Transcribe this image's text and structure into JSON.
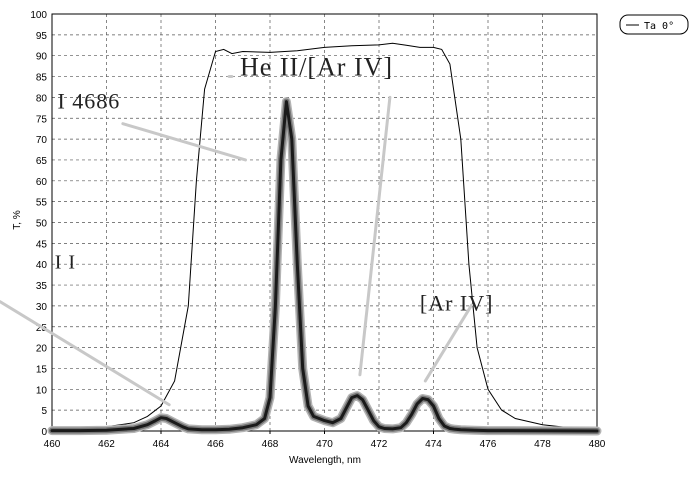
{
  "chart_data": {
    "type": "line",
    "xlabel": "Wavelength, nm",
    "ylabel": "T, %",
    "xlim": [
      460,
      480
    ],
    "ylim": [
      0,
      100
    ],
    "x_ticks": [
      460,
      462,
      464,
      466,
      468,
      470,
      472,
      474,
      476,
      478,
      480
    ],
    "y_ticks": [
      0,
      5,
      10,
      15,
      20,
      25,
      30,
      35,
      40,
      45,
      50,
      55,
      60,
      65,
      70,
      75,
      80,
      85,
      90,
      95,
      100
    ],
    "grid": true,
    "legend_position": "top-right",
    "series": [
      {
        "name": "Ta 0°",
        "color": "#000000",
        "x": [
          460,
          461,
          462,
          463,
          463.5,
          464,
          464.5,
          465,
          465.3,
          465.6,
          466,
          466.3,
          466.6,
          467,
          468,
          469,
          470,
          471,
          472,
          472.5,
          473,
          473.5,
          474,
          474.3,
          474.6,
          475,
          475.3,
          475.6,
          476,
          476.5,
          477,
          478,
          479,
          480
        ],
        "y": [
          0.3,
          0.5,
          1,
          2,
          3.5,
          6,
          12,
          30,
          60,
          82,
          91,
          91.5,
          90.5,
          91,
          90.8,
          91.2,
          92,
          92.4,
          92.6,
          93,
          92.5,
          92,
          92,
          91.5,
          88,
          70,
          40,
          20,
          10,
          5,
          3,
          1.5,
          0.8,
          0.5
        ]
      },
      {
        "color": "#000000",
        "x": [
          460,
          461,
          462,
          463,
          463.5,
          463.8,
          464,
          464.2,
          464.5,
          464.8,
          465,
          465.5,
          466,
          466.5,
          467,
          467.5,
          467.8,
          468,
          468.2,
          468.4,
          468.6,
          468.8,
          469,
          469.2,
          469.4,
          469.6,
          469.8,
          470,
          470.3,
          470.6,
          470.8,
          471,
          471.2,
          471.4,
          471.6,
          471.8,
          472,
          472.2,
          472.5,
          472.8,
          473,
          473.2,
          473.4,
          473.6,
          473.8,
          474,
          474.2,
          474.4,
          474.6,
          474.8,
          475,
          475.5,
          476,
          478,
          480
        ],
        "y": [
          0.1,
          0.1,
          0.2,
          0.6,
          1.5,
          2.5,
          3.2,
          3,
          2,
          1,
          0.5,
          0.3,
          0.3,
          0.4,
          0.8,
          1.5,
          3,
          8,
          30,
          65,
          79,
          70,
          40,
          15,
          6,
          3.5,
          3,
          2.5,
          2,
          3,
          5.5,
          8,
          8.5,
          7.5,
          5,
          2.5,
          1,
          0.6,
          0.5,
          0.8,
          2,
          4,
          6.5,
          7.8,
          7.5,
          6,
          3,
          1.2,
          0.6,
          0.4,
          0.3,
          0.2,
          0.1,
          0.05,
          0
        ]
      }
    ],
    "annotations": [
      {
        "text": "He II/[Ar IV]",
        "x": 466.9,
        "y": 85.3,
        "size": 26,
        "pointer": [
          466.5,
          85,
          466.6,
          85
        ]
      },
      {
        "text": "I 4686",
        "x": 460.2,
        "y": 77.3,
        "size": 22,
        "pointer": [
          462.6,
          73.7,
          467.1,
          65
        ]
      },
      {
        "text": "[Ar IV]",
        "x": 473.5,
        "y": 28.9,
        "size": 22,
        "pointer": [
          475.4,
          30.2,
          473.7,
          12
        ]
      },
      {
        "text": "I I",
        "x": 460.1,
        "y": 39,
        "size": 20,
        "pointer": [
          458.1,
          31,
          464.3,
          6.3
        ]
      },
      {
        "text": "",
        "x": 0,
        "y": 0,
        "size": 0,
        "pointer": [
          472.4,
          80,
          471.3,
          13.5
        ]
      }
    ]
  }
}
